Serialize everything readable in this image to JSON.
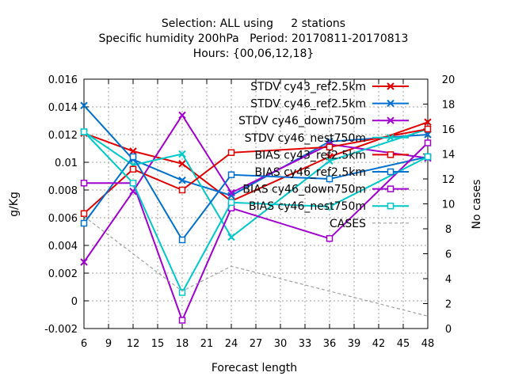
{
  "title_lines": [
    "Selection: ALL using     2 stations",
    "Specific humidity 200hPa   Period: 20170811-20170813",
    "Hours: {00,06,12,18}"
  ],
  "chart_data": {
    "type": "line",
    "title": "Selection: ALL using     2 stations / Specific humidity 200hPa   Period: 20170811-20170813 / Hours: {00,06,12,18}",
    "xlabel": "Forecast length",
    "ylabel": "g/Kg",
    "y2label": "No cases",
    "x": [
      6,
      12,
      18,
      24,
      36,
      48
    ],
    "xticks": [
      6,
      9,
      12,
      15,
      18,
      21,
      24,
      27,
      30,
      33,
      36,
      39,
      42,
      45,
      48
    ],
    "xlim": [
      6,
      48
    ],
    "ylim": [
      -0.002,
      0.016
    ],
    "yticks": [
      -0.002,
      0,
      0.002,
      0.004,
      0.006,
      0.008,
      0.01,
      0.012,
      0.014,
      0.016
    ],
    "ytick_labels": [
      "-0.002",
      "0",
      "0.002",
      "0.004",
      "0.006",
      "0.008",
      "0.01",
      "0.012",
      "0.014",
      "0.016"
    ],
    "y2lim": [
      0,
      20
    ],
    "y2ticks": [
      0,
      2,
      4,
      6,
      8,
      10,
      12,
      14,
      16,
      18,
      20
    ],
    "grid": true,
    "legend_position": "top-right",
    "series": [
      {
        "name": "STDV cy43_ref2.5km",
        "color": "#e00000",
        "marker": "x",
        "values": [
          0.0121,
          0.0108,
          0.0099,
          0.0072,
          0.0104,
          0.0129
        ]
      },
      {
        "name": "STDV cy46_ref2.5km",
        "color": "#0070d0",
        "marker": "x",
        "values": [
          0.0141,
          0.0102,
          0.0087,
          0.0076,
          0.0115,
          0.012
        ]
      },
      {
        "name": "STDV cy46_down750m",
        "color": "#a000d0",
        "marker": "x",
        "values": [
          0.0028,
          0.0079,
          0.0134,
          0.0078,
          0.0113,
          0.0103
        ]
      },
      {
        "name": "STDV cy46_nest750m",
        "color": "#00c8c8",
        "marker": "x",
        "values": [
          0.0122,
          0.0098,
          0.0106,
          0.0046,
          0.0101,
          0.0124
        ]
      },
      {
        "name": "BIAS cy43_ref2.5km",
        "color": "#e00000",
        "marker": "square",
        "values": [
          0.0063,
          0.0095,
          0.008,
          0.0107,
          0.0111,
          0.0124
        ]
      },
      {
        "name": "BIAS cy46_ref2.5km",
        "color": "#0070d0",
        "marker": "square",
        "values": [
          0.0056,
          0.0104,
          0.0044,
          0.0091,
          0.0088,
          0.0104
        ]
      },
      {
        "name": "BIAS cy46_down750m",
        "color": "#a000d0",
        "marker": "square",
        "values": [
          0.0085,
          0.0085,
          -0.0014,
          0.0067,
          0.0045,
          0.0114
        ]
      },
      {
        "name": "BIAS cy46_nest750m",
        "color": "#00c8c8",
        "marker": "square",
        "values": [
          0.0122,
          0.0085,
          0.0006,
          0.0071,
          0.0068,
          0.0104
        ]
      },
      {
        "name": "CASES",
        "color": "#a0a0a0",
        "marker": "none",
        "dashed": true,
        "axis": "y2",
        "values": [
          9,
          6,
          3,
          5,
          3,
          1
        ]
      }
    ]
  }
}
